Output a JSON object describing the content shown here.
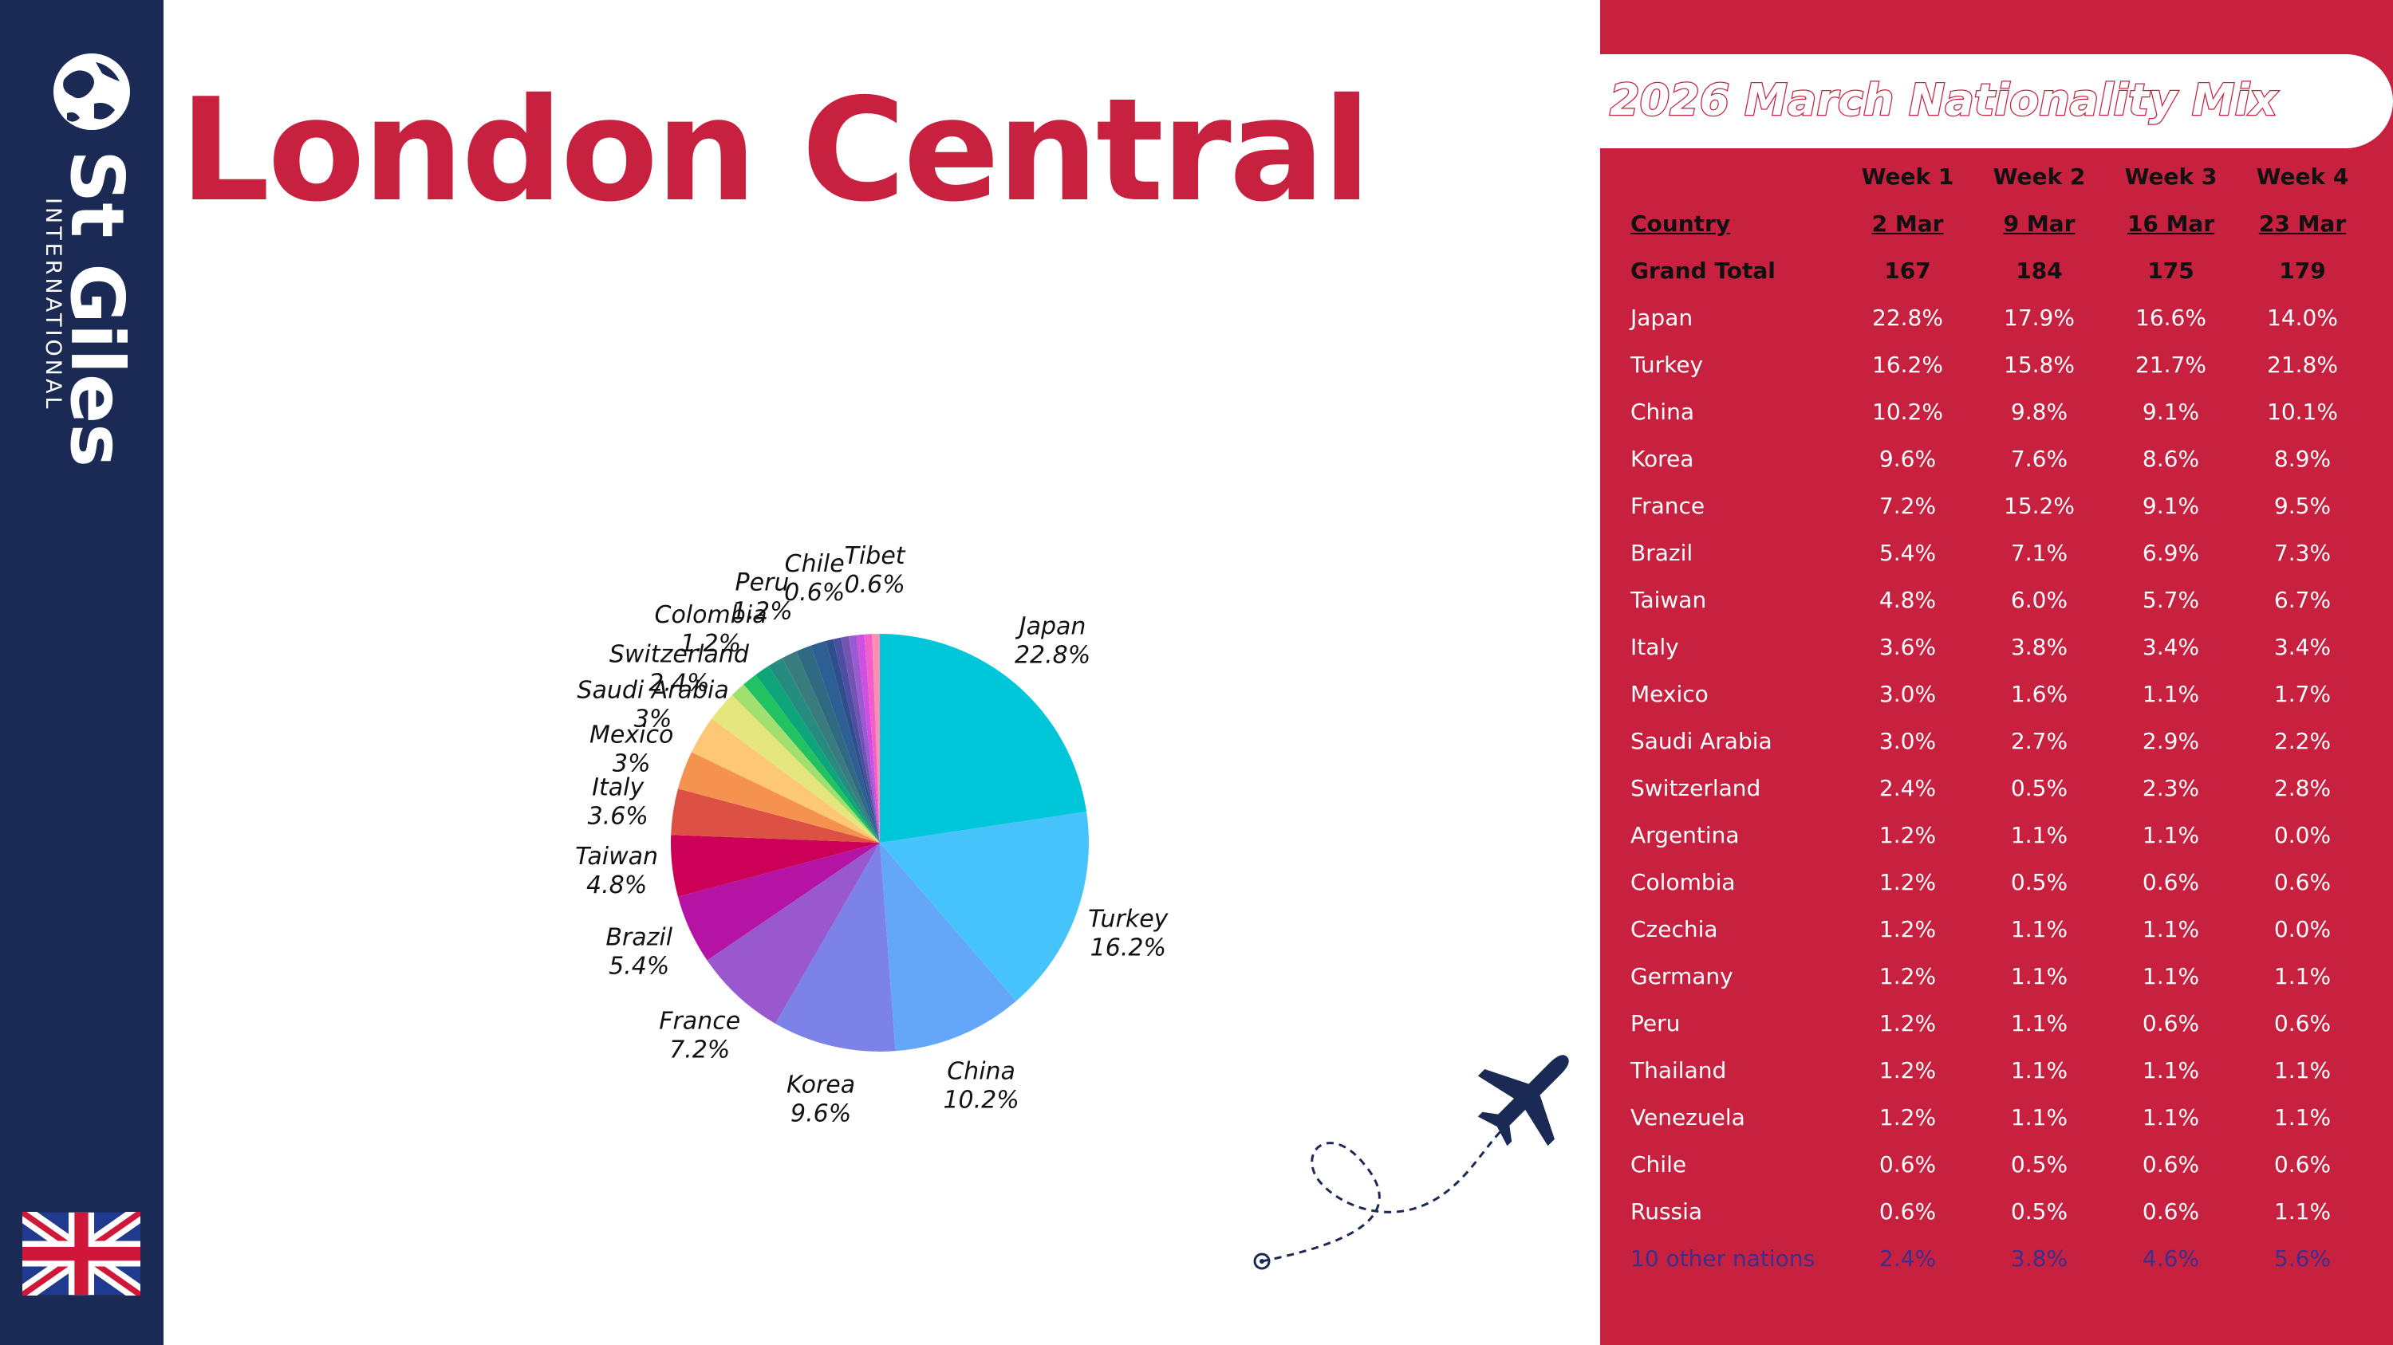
{
  "brand": {
    "name": "St Giles",
    "tagline": "INTERNATIONAL"
  },
  "page_title": "London Central",
  "table": {
    "title": "2026 March Nationality Mix",
    "week_headers": [
      "Week 1",
      "Week 2",
      "Week 3",
      "Week 4"
    ],
    "country_header": "Country",
    "dates": [
      "2 Mar",
      "9 Mar",
      "16 Mar",
      "23 Mar"
    ],
    "total_label": "Grand Total",
    "totals": [
      "167",
      "184",
      "175",
      "179"
    ],
    "rows": [
      {
        "country": "Japan",
        "values": [
          "22.8%",
          "17.9%",
          "16.6%",
          "14.0%"
        ]
      },
      {
        "country": "Turkey",
        "values": [
          "16.2%",
          "15.8%",
          "21.7%",
          "21.8%"
        ]
      },
      {
        "country": "China",
        "values": [
          "10.2%",
          "9.8%",
          "9.1%",
          "10.1%"
        ]
      },
      {
        "country": "Korea",
        "values": [
          "9.6%",
          "7.6%",
          "8.6%",
          "8.9%"
        ]
      },
      {
        "country": "France",
        "values": [
          "7.2%",
          "15.2%",
          "9.1%",
          "9.5%"
        ]
      },
      {
        "country": "Brazil",
        "values": [
          "5.4%",
          "7.1%",
          "6.9%",
          "7.3%"
        ]
      },
      {
        "country": "Taiwan",
        "values": [
          "4.8%",
          "6.0%",
          "5.7%",
          "6.7%"
        ]
      },
      {
        "country": "Italy",
        "values": [
          "3.6%",
          "3.8%",
          "3.4%",
          "3.4%"
        ]
      },
      {
        "country": "Mexico",
        "values": [
          "3.0%",
          "1.6%",
          "1.1%",
          "1.7%"
        ]
      },
      {
        "country": "Saudi Arabia",
        "values": [
          "3.0%",
          "2.7%",
          "2.9%",
          "2.2%"
        ]
      },
      {
        "country": "Switzerland",
        "values": [
          "2.4%",
          "0.5%",
          "2.3%",
          "2.8%"
        ]
      },
      {
        "country": "Argentina",
        "values": [
          "1.2%",
          "1.1%",
          "1.1%",
          "0.0%"
        ]
      },
      {
        "country": "Colombia",
        "values": [
          "1.2%",
          "0.5%",
          "0.6%",
          "0.6%"
        ]
      },
      {
        "country": "Czechia",
        "values": [
          "1.2%",
          "1.1%",
          "1.1%",
          "0.0%"
        ]
      },
      {
        "country": "Germany",
        "values": [
          "1.2%",
          "1.1%",
          "1.1%",
          "1.1%"
        ]
      },
      {
        "country": "Peru",
        "values": [
          "1.2%",
          "1.1%",
          "0.6%",
          "0.6%"
        ]
      },
      {
        "country": "Thailand",
        "values": [
          "1.2%",
          "1.1%",
          "1.1%",
          "1.1%"
        ]
      },
      {
        "country": "Venezuela",
        "values": [
          "1.2%",
          "1.1%",
          "1.1%",
          "1.1%"
        ]
      },
      {
        "country": "Chile",
        "values": [
          "0.6%",
          "0.5%",
          "0.6%",
          "0.6%"
        ]
      },
      {
        "country": "Russia",
        "values": [
          "0.6%",
          "0.5%",
          "0.6%",
          "1.1%"
        ]
      }
    ],
    "others_label": "10 other nations",
    "others_values": [
      "2.4%",
      "3.8%",
      "4.6%",
      "5.6%"
    ]
  },
  "chart_data": {
    "type": "pie",
    "title": "",
    "slices": [
      {
        "label": "Japan",
        "value": 22.8,
        "value_label": "22.8%",
        "color": "#00c6da",
        "show_label": true
      },
      {
        "label": "Turkey",
        "value": 16.2,
        "value_label": "16.2%",
        "color": "#47c3fb",
        "show_label": true
      },
      {
        "label": "China",
        "value": 10.2,
        "value_label": "10.2%",
        "color": "#64a7f8",
        "show_label": true
      },
      {
        "label": "Korea",
        "value": 9.6,
        "value_label": "9.6%",
        "color": "#7d82e8",
        "show_label": true
      },
      {
        "label": "France",
        "value": 7.2,
        "value_label": "7.2%",
        "color": "#9a58cf",
        "show_label": true
      },
      {
        "label": "Brazil",
        "value": 5.4,
        "value_label": "5.4%",
        "color": "#b513a3",
        "show_label": true
      },
      {
        "label": "Taiwan",
        "value": 4.8,
        "value_label": "4.8%",
        "color": "#cd0057",
        "show_label": true
      },
      {
        "label": "Italy",
        "value": 3.6,
        "value_label": "3.6%",
        "color": "#dd5145",
        "show_label": true
      },
      {
        "label": "Mexico",
        "value": 3.0,
        "value_label": "3%",
        "color": "#f5924f",
        "show_label": true
      },
      {
        "label": "Saudi Arabia",
        "value": 3.0,
        "value_label": "3%",
        "color": "#fdc876",
        "show_label": true
      },
      {
        "label": "Switzerland",
        "value": 2.4,
        "value_label": "2.4%",
        "color": "#e6e67e",
        "show_label": true
      },
      {
        "label": "Argentina",
        "value": 1.2,
        "value_label": "1.2%",
        "color": "#a1df6e",
        "show_label": false
      },
      {
        "label": "Colombia",
        "value": 1.2,
        "value_label": "1.2%",
        "color": "#22c262",
        "show_label": true
      },
      {
        "label": "Czechia",
        "value": 1.2,
        "value_label": "1.2%",
        "color": "#0fa57a",
        "show_label": false
      },
      {
        "label": "Germany",
        "value": 1.2,
        "value_label": "1.2%",
        "color": "#268c80",
        "show_label": false
      },
      {
        "label": "Peru",
        "value": 1.2,
        "value_label": "1.2%",
        "color": "#3a7c7e",
        "show_label": true
      },
      {
        "label": "Thailand",
        "value": 1.2,
        "value_label": "1.2%",
        "color": "#2f6a82",
        "show_label": false
      },
      {
        "label": "Venezuela",
        "value": 1.2,
        "value_label": "1.2%",
        "color": "#2d5f95",
        "show_label": false
      },
      {
        "label": "Chile",
        "value": 0.6,
        "value_label": "0.6%",
        "color": "#2e4f8b",
        "show_label": true
      },
      {
        "label": "Russia",
        "value": 0.6,
        "value_label": "0.6%",
        "color": "#4c4ea1",
        "show_label": false
      },
      {
        "label": "",
        "value": 0.6,
        "value_label": "",
        "color": "#7354b2",
        "show_label": false
      },
      {
        "label": "",
        "value": 0.6,
        "value_label": "",
        "color": "#9a5bd2",
        "show_label": false
      },
      {
        "label": "",
        "value": 0.6,
        "value_label": "",
        "color": "#d04fe0",
        "show_label": false
      },
      {
        "label": "",
        "value": 0.6,
        "value_label": "",
        "color": "#f060c8",
        "show_label": false
      },
      {
        "label": "Tibet",
        "value": 0.6,
        "value_label": "0.6%",
        "color": "#ff8fb0",
        "show_label": true
      }
    ]
  }
}
